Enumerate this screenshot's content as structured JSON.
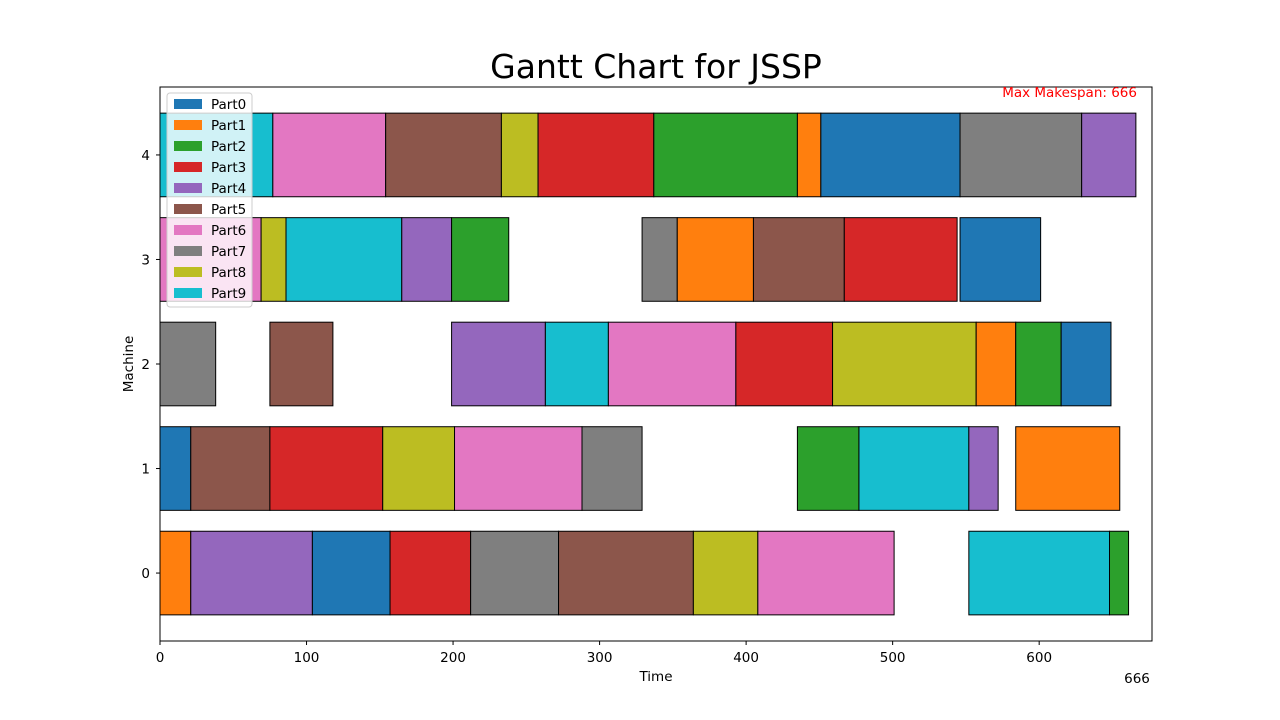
{
  "colors": {
    "Part0": "#1f77b4",
    "Part1": "#ff7f0e",
    "Part2": "#2ca02c",
    "Part3": "#d62728",
    "Part4": "#9467bd",
    "Part5": "#8c564b",
    "Part6": "#e377c2",
    "Part7": "#7f7f7f",
    "Part8": "#bcbd22",
    "Part9": "#17becf",
    "makespan_text": "#ff0000"
  },
  "chart_data": {
    "type": "gantt",
    "title": "Gantt Chart for JSSP",
    "xlabel": "Time",
    "ylabel": "Machine",
    "xlim": [
      0,
      677
    ],
    "ylim": [
      -0.65,
      4.65
    ],
    "x_ticks": [
      "0",
      "100",
      "200",
      "300",
      "400",
      "500",
      "600"
    ],
    "y_ticks": [
      "0",
      "1",
      "2",
      "3",
      "4"
    ],
    "makespan_label": "Max Makespan: 666",
    "makespan_tick": "666",
    "legend_position": "top-left",
    "legend": [
      "Part0",
      "Part1",
      "Part2",
      "Part3",
      "Part4",
      "Part5",
      "Part6",
      "Part7",
      "Part8",
      "Part9"
    ],
    "tasks": [
      {
        "machine": 4,
        "part": "Part9",
        "start": 0,
        "end": 77
      },
      {
        "machine": 4,
        "part": "Part6",
        "start": 77,
        "end": 154
      },
      {
        "machine": 4,
        "part": "Part5",
        "start": 154,
        "end": 233
      },
      {
        "machine": 4,
        "part": "Part8",
        "start": 233,
        "end": 258
      },
      {
        "machine": 4,
        "part": "Part3",
        "start": 258,
        "end": 337
      },
      {
        "machine": 4,
        "part": "Part2",
        "start": 337,
        "end": 435
      },
      {
        "machine": 4,
        "part": "Part1",
        "start": 435,
        "end": 451
      },
      {
        "machine": 4,
        "part": "Part0",
        "start": 451,
        "end": 546
      },
      {
        "machine": 4,
        "part": "Part7",
        "start": 546,
        "end": 629
      },
      {
        "machine": 4,
        "part": "Part4",
        "start": 629,
        "end": 666
      },
      {
        "machine": 3,
        "part": "Part6",
        "start": 0,
        "end": 69
      },
      {
        "machine": 3,
        "part": "Part8",
        "start": 69,
        "end": 86
      },
      {
        "machine": 3,
        "part": "Part9",
        "start": 86,
        "end": 165
      },
      {
        "machine": 3,
        "part": "Part4",
        "start": 165,
        "end": 199
      },
      {
        "machine": 3,
        "part": "Part2",
        "start": 199,
        "end": 238
      },
      {
        "machine": 3,
        "part": "Part7",
        "start": 329,
        "end": 353
      },
      {
        "machine": 3,
        "part": "Part1",
        "start": 353,
        "end": 405
      },
      {
        "machine": 3,
        "part": "Part5",
        "start": 405,
        "end": 467
      },
      {
        "machine": 3,
        "part": "Part3",
        "start": 467,
        "end": 544
      },
      {
        "machine": 3,
        "part": "Part0",
        "start": 546,
        "end": 601
      },
      {
        "machine": 2,
        "part": "Part7",
        "start": 0,
        "end": 38
      },
      {
        "machine": 2,
        "part": "Part5",
        "start": 75,
        "end": 118
      },
      {
        "machine": 2,
        "part": "Part4",
        "start": 199,
        "end": 263
      },
      {
        "machine": 2,
        "part": "Part9",
        "start": 263,
        "end": 306
      },
      {
        "machine": 2,
        "part": "Part6",
        "start": 306,
        "end": 393
      },
      {
        "machine": 2,
        "part": "Part3",
        "start": 393,
        "end": 459
      },
      {
        "machine": 2,
        "part": "Part8",
        "start": 459,
        "end": 557
      },
      {
        "machine": 2,
        "part": "Part1",
        "start": 557,
        "end": 584
      },
      {
        "machine": 2,
        "part": "Part2",
        "start": 584,
        "end": 615
      },
      {
        "machine": 2,
        "part": "Part0",
        "start": 615,
        "end": 649
      },
      {
        "machine": 1,
        "part": "Part0",
        "start": 0,
        "end": 21
      },
      {
        "machine": 1,
        "part": "Part5",
        "start": 21,
        "end": 75
      },
      {
        "machine": 1,
        "part": "Part3",
        "start": 75,
        "end": 152
      },
      {
        "machine": 1,
        "part": "Part8",
        "start": 152,
        "end": 201
      },
      {
        "machine": 1,
        "part": "Part6",
        "start": 201,
        "end": 288
      },
      {
        "machine": 1,
        "part": "Part7",
        "start": 288,
        "end": 329
      },
      {
        "machine": 1,
        "part": "Part2",
        "start": 435,
        "end": 477
      },
      {
        "machine": 1,
        "part": "Part9",
        "start": 477,
        "end": 552
      },
      {
        "machine": 1,
        "part": "Part4",
        "start": 552,
        "end": 572
      },
      {
        "machine": 1,
        "part": "Part1",
        "start": 584,
        "end": 655
      },
      {
        "machine": 0,
        "part": "Part1",
        "start": 0,
        "end": 21
      },
      {
        "machine": 0,
        "part": "Part4",
        "start": 21,
        "end": 104
      },
      {
        "machine": 0,
        "part": "Part0",
        "start": 104,
        "end": 157
      },
      {
        "machine": 0,
        "part": "Part3",
        "start": 157,
        "end": 212
      },
      {
        "machine": 0,
        "part": "Part7",
        "start": 212,
        "end": 272
      },
      {
        "machine": 0,
        "part": "Part5",
        "start": 272,
        "end": 364
      },
      {
        "machine": 0,
        "part": "Part8",
        "start": 364,
        "end": 408
      },
      {
        "machine": 0,
        "part": "Part6",
        "start": 408,
        "end": 501
      },
      {
        "machine": 0,
        "part": "Part9",
        "start": 552,
        "end": 648
      },
      {
        "machine": 0,
        "part": "Part2",
        "start": 648,
        "end": 661
      }
    ]
  }
}
